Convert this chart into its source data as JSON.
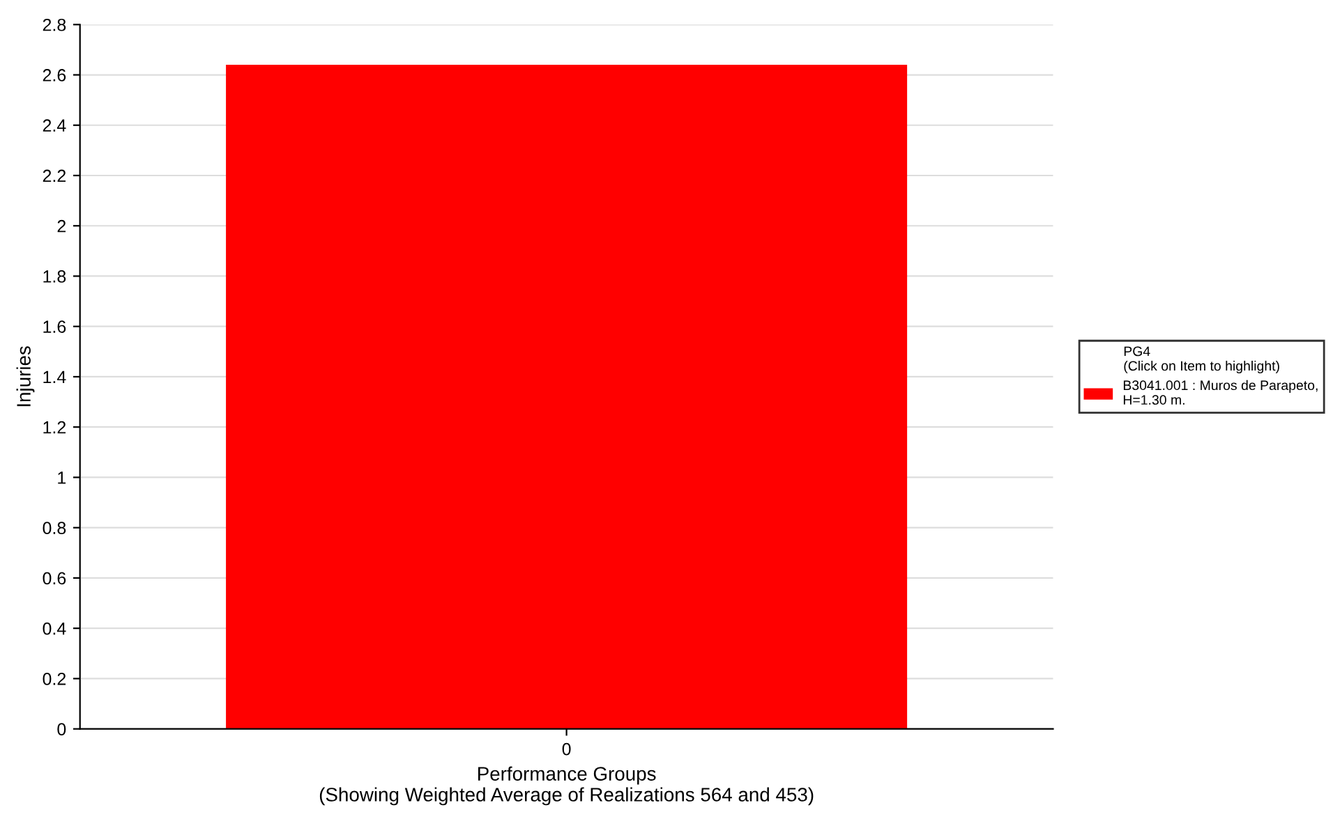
{
  "chart_data": {
    "type": "bar",
    "xlabel": "Performance Groups\n(Showing Weighted Average of Realizations 564 and 453)",
    "ylabel": "Injuries",
    "legend_title": "PG4\n(Click on Item to highlight)",
    "categories": [
      "0"
    ],
    "series": [
      {
        "name": "B3041.001 : Muros de Parapeto,\nH=1.30 m.",
        "color": "#ff0000",
        "values": [
          2.64
        ]
      }
    ],
    "ylim": [
      0,
      2.8
    ],
    "yticks": [
      0,
      0.2,
      0.4,
      0.6,
      0.8,
      1,
      1.2,
      1.4,
      1.6,
      1.8,
      2,
      2.2,
      2.4,
      2.6,
      2.8
    ],
    "grid": "y",
    "legend": "right"
  }
}
